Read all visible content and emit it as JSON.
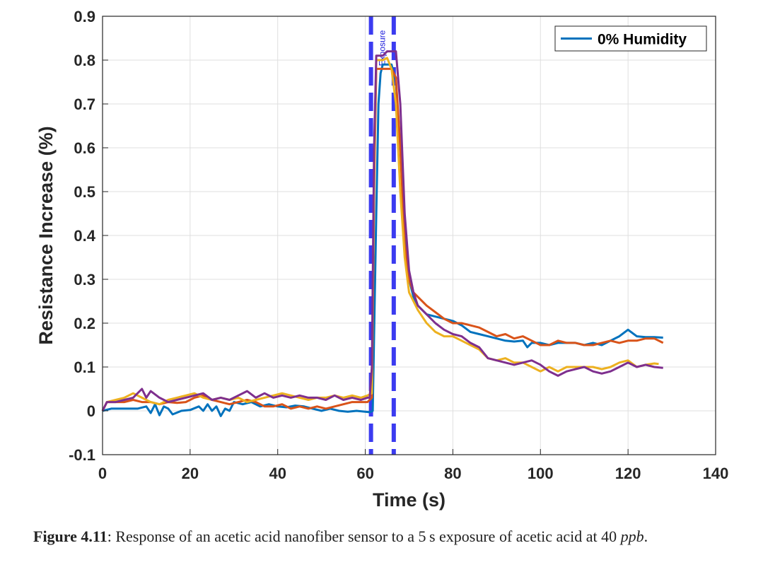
{
  "chart_data": {
    "type": "line",
    "xlabel": "Time (s)",
    "ylabel": "Resistance Increase (%)",
    "xlim": [
      0,
      140
    ],
    "ylim": [
      -0.1,
      0.9
    ],
    "xticks": [
      0,
      20,
      40,
      60,
      80,
      100,
      120,
      140
    ],
    "xtick_labels": [
      "0",
      "20",
      "40",
      "60",
      "80",
      "100",
      "120",
      "140"
    ],
    "yticks": [
      -0.1,
      0,
      0.1,
      0.2,
      0.3,
      0.4,
      0.5,
      0.6,
      0.7,
      0.8,
      0.9
    ],
    "ytick_labels": [
      "-0.1",
      "0",
      "0.1",
      "0.2",
      "0.3",
      "0.4",
      "0.5",
      "0.6",
      "0.7",
      "0.8",
      "0.9"
    ],
    "grid": true,
    "legend": {
      "placement": "top-right",
      "entries": [
        "0% Humidity"
      ]
    },
    "exposure_window": {
      "start": 61.3,
      "end": 66.5,
      "label": "Exposure",
      "color": "#3b3bf0"
    },
    "series": [
      {
        "name": "0% Humidity",
        "color": "#0072BD",
        "x": [
          0,
          2,
          5,
          8,
          10,
          11,
          12,
          13,
          14,
          15,
          16,
          18,
          20,
          22,
          23,
          24,
          25,
          26,
          27,
          28,
          29,
          30,
          32,
          34,
          36,
          38,
          40,
          42,
          44,
          46,
          48,
          50,
          52,
          54,
          56,
          58,
          60,
          61,
          61.7,
          62.5,
          63,
          63.5,
          64,
          65,
          66,
          67,
          68,
          69,
          70,
          71,
          72,
          74,
          76,
          78,
          80,
          82,
          84,
          86,
          88,
          90,
          92,
          94,
          96,
          97,
          98,
          100,
          102,
          104,
          106,
          108,
          110,
          112,
          114,
          116,
          118,
          120,
          122,
          124,
          126,
          128
        ],
        "y": [
          0,
          0.005,
          0.005,
          0.005,
          0.01,
          -0.005,
          0.015,
          -0.01,
          0.01,
          0.005,
          -0.008,
          0.0,
          0.002,
          0.01,
          0.0,
          0.015,
          0.0,
          0.01,
          -0.012,
          0.005,
          0.0,
          0.02,
          0.015,
          0.02,
          0.01,
          0.015,
          0.01,
          0.008,
          0.012,
          0.01,
          0.005,
          0.0,
          0.005,
          0.0,
          -0.002,
          0.0,
          -0.002,
          -0.003,
          0.0,
          0.45,
          0.7,
          0.77,
          0.79,
          0.79,
          0.79,
          0.75,
          0.6,
          0.4,
          0.3,
          0.26,
          0.24,
          0.22,
          0.215,
          0.21,
          0.205,
          0.195,
          0.18,
          0.175,
          0.17,
          0.165,
          0.16,
          0.158,
          0.16,
          0.145,
          0.155,
          0.155,
          0.15,
          0.155,
          0.155,
          0.155,
          0.15,
          0.155,
          0.15,
          0.16,
          0.17,
          0.185,
          0.17,
          0.168,
          0.168,
          0.167
        ]
      },
      {
        "name": "",
        "color": "#D95319",
        "x": [
          0,
          1,
          3,
          5,
          7,
          9,
          11,
          13,
          15,
          17,
          19,
          21,
          23,
          25,
          27,
          29,
          31,
          33,
          35,
          37,
          39,
          41,
          43,
          45,
          47,
          49,
          51,
          53,
          55,
          57,
          59,
          60.5,
          61.5,
          62,
          62.5,
          63,
          64,
          66,
          67,
          68,
          69,
          70,
          71,
          72,
          74,
          76,
          78,
          80,
          82,
          84,
          86,
          88,
          90,
          92,
          94,
          96,
          98,
          100,
          102,
          104,
          106,
          108,
          110,
          112,
          114,
          116,
          118,
          120,
          122,
          124,
          126,
          128
        ],
        "y": [
          0,
          0.02,
          0.02,
          0.02,
          0.025,
          0.02,
          0.02,
          0.015,
          0.02,
          0.018,
          0.02,
          0.03,
          0.035,
          0.025,
          0.02,
          0.015,
          0.02,
          0.025,
          0.02,
          0.01,
          0.01,
          0.015,
          0.005,
          0.01,
          0.005,
          0.01,
          0.005,
          0.01,
          0.015,
          0.02,
          0.02,
          0.02,
          0.03,
          0.5,
          0.78,
          0.78,
          0.78,
          0.78,
          0.76,
          0.6,
          0.38,
          0.3,
          0.27,
          0.26,
          0.24,
          0.225,
          0.21,
          0.2,
          0.2,
          0.195,
          0.19,
          0.18,
          0.17,
          0.175,
          0.165,
          0.17,
          0.16,
          0.15,
          0.15,
          0.16,
          0.155,
          0.155,
          0.15,
          0.15,
          0.155,
          0.16,
          0.155,
          0.16,
          0.16,
          0.165,
          0.165,
          0.155
        ]
      },
      {
        "name": "",
        "color": "#EDB120",
        "x": [
          0,
          1,
          3,
          5,
          7,
          9,
          11,
          13,
          15,
          17,
          19,
          21,
          23,
          25,
          27,
          29,
          31,
          33,
          35,
          37,
          39,
          41,
          43,
          45,
          47,
          49,
          51,
          53,
          55,
          57,
          59,
          60.5,
          61.5,
          62,
          62.5,
          63,
          64,
          65,
          66,
          67,
          68,
          69,
          70,
          71,
          72,
          74,
          76,
          78,
          80,
          82,
          84,
          86,
          88,
          90,
          92,
          94,
          96,
          98,
          100,
          102,
          104,
          106,
          108,
          110,
          112,
          114,
          116,
          118,
          120,
          122,
          124,
          126,
          127
        ],
        "y": [
          0,
          0.02,
          0.025,
          0.03,
          0.04,
          0.03,
          0.02,
          0.015,
          0.025,
          0.03,
          0.035,
          0.04,
          0.03,
          0.025,
          0.03,
          0.025,
          0.03,
          0.02,
          0.025,
          0.03,
          0.035,
          0.04,
          0.035,
          0.03,
          0.025,
          0.03,
          0.03,
          0.035,
          0.03,
          0.035,
          0.03,
          0.035,
          0.04,
          0.55,
          0.8,
          0.8,
          0.8,
          0.805,
          0.78,
          0.7,
          0.5,
          0.35,
          0.27,
          0.25,
          0.23,
          0.2,
          0.18,
          0.17,
          0.17,
          0.16,
          0.15,
          0.14,
          0.12,
          0.115,
          0.12,
          0.11,
          0.11,
          0.1,
          0.09,
          0.1,
          0.09,
          0.1,
          0.1,
          0.1,
          0.1,
          0.095,
          0.1,
          0.11,
          0.115,
          0.1,
          0.105,
          0.108,
          0.107
        ]
      },
      {
        "name": "",
        "color": "#7E2F8E",
        "x": [
          0,
          1,
          3,
          5,
          7,
          9,
          10,
          11,
          13,
          15,
          17,
          19,
          21,
          23,
          25,
          27,
          29,
          31,
          33,
          35,
          37,
          39,
          41,
          43,
          45,
          47,
          49,
          51,
          53,
          55,
          57,
          59,
          60.5,
          61,
          61.5,
          62,
          62.5,
          63,
          64,
          65,
          66,
          67,
          68,
          69,
          70,
          71,
          72,
          74,
          76,
          78,
          80,
          82,
          84,
          86,
          88,
          90,
          92,
          94,
          96,
          98,
          100,
          102,
          104,
          106,
          108,
          110,
          112,
          114,
          116,
          118,
          120,
          122,
          124,
          126,
          128
        ],
        "y": [
          0,
          0.02,
          0.02,
          0.025,
          0.03,
          0.05,
          0.03,
          0.045,
          0.03,
          0.02,
          0.025,
          0.03,
          0.035,
          0.04,
          0.025,
          0.03,
          0.025,
          0.035,
          0.045,
          0.03,
          0.04,
          0.03,
          0.035,
          0.03,
          0.035,
          0.03,
          0.03,
          0.025,
          0.035,
          0.025,
          0.03,
          0.025,
          0.03,
          0.03,
          0.1,
          0.6,
          0.81,
          0.81,
          0.81,
          0.82,
          0.82,
          0.82,
          0.7,
          0.45,
          0.32,
          0.27,
          0.24,
          0.22,
          0.2,
          0.185,
          0.175,
          0.17,
          0.155,
          0.145,
          0.12,
          0.115,
          0.11,
          0.105,
          0.11,
          0.115,
          0.105,
          0.09,
          0.08,
          0.09,
          0.095,
          0.1,
          0.09,
          0.085,
          0.09,
          0.1,
          0.11,
          0.1,
          0.105,
          0.1,
          0.098
        ]
      }
    ]
  },
  "caption": {
    "label": "Figure 4.11",
    "text_before": ": Response of an acetic acid nanofiber sensor to a 5 s exposure of acetic acid at 40 ",
    "unit": "ppb",
    "text_after": "."
  }
}
